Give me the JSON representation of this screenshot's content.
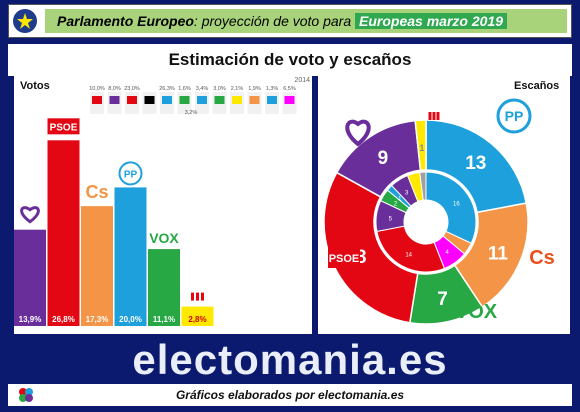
{
  "header": {
    "title_bold": "Parlamento Europeo",
    "title_mid": ": proyección de voto para ",
    "title_highlight": "Europeas marzo 2019"
  },
  "subtitle": "Estimación de voto y escaños",
  "brand": "electomania.es",
  "footer": "Gráficos elaborados por electomania.es",
  "colors": {
    "bg": "#0b1a6e",
    "band": "#a8d37a",
    "highlight": "#2fa84f"
  },
  "chart_data": [
    {
      "type": "bar",
      "title": "Votos",
      "categories": [
        "Podemos",
        "PSOE",
        "Cs",
        "PP",
        "VOX",
        "Compromís"
      ],
      "values": [
        13.9,
        26.8,
        17.3,
        20.0,
        11.1,
        2.8
      ],
      "value_labels": [
        "13,9%",
        "26,8%",
        "17,3%",
        "20,0%",
        "11,1%",
        "2,8%"
      ],
      "colors": [
        "#6a2e9a",
        "#e30613",
        "#f39446",
        "#1ea0dc",
        "#28a745",
        "#ffe900"
      ],
      "ylim": [
        0,
        28
      ],
      "inset": {
        "label": "2014",
        "values": [
          "10,0%",
          "8,0%",
          "23,0%",
          "",
          "26,3%",
          "1,6%",
          "3,4%",
          "3,0%",
          "2,1%",
          "1,9%",
          "1,3%",
          "6,5%"
        ],
        "extra": [
          "3,2%"
        ],
        "colors": [
          "#e30613",
          "#6a2e9a",
          "#e30613",
          "#000000",
          "#1ea0dc",
          "#28a745",
          "#1ea0dc",
          "#28a745",
          "#ffe900",
          "#f39446",
          "#1ea0dc",
          "#ff00ff"
        ]
      }
    },
    {
      "type": "pie",
      "title": "Escaños",
      "outer": [
        {
          "party": "PP",
          "seats": 13,
          "color": "#1ea0dc"
        },
        {
          "party": "Cs",
          "seats": 11,
          "color": "#f39446"
        },
        {
          "party": "VOX",
          "seats": 7,
          "color": "#28a745"
        },
        {
          "party": "PSOE",
          "seats": 18,
          "color": "#e30613"
        },
        {
          "party": "Podemos",
          "seats": 9,
          "color": "#6a2e9a"
        },
        {
          "party": "Compromís",
          "seats": 1,
          "color": "#ffe900"
        }
      ],
      "inner": [
        {
          "seats": 16,
          "color": "#1ea0dc",
          "label": "16"
        },
        {
          "seats": 2,
          "color": "#f39446",
          "label": ""
        },
        {
          "seats": 4,
          "color": "#ff00ff",
          "label": "4"
        },
        {
          "seats": 14,
          "color": "#e30613",
          "label": "14"
        },
        {
          "seats": 5,
          "color": "#6a2e9a",
          "label": "5"
        },
        {
          "seats": 2,
          "color": "#28a745",
          "label": "2"
        },
        {
          "seats": 1,
          "color": "#1ea0dc",
          "label": "1"
        },
        {
          "seats": 3,
          "color": "#6a2e9a",
          "label": "3"
        },
        {
          "seats": 2,
          "color": "#ffe900",
          "label": ""
        },
        {
          "seats": 1,
          "color": "#a0a0a0",
          "label": ""
        }
      ],
      "party_labels": [
        "PP",
        "Cs",
        "VOX",
        "PSOE"
      ]
    }
  ]
}
